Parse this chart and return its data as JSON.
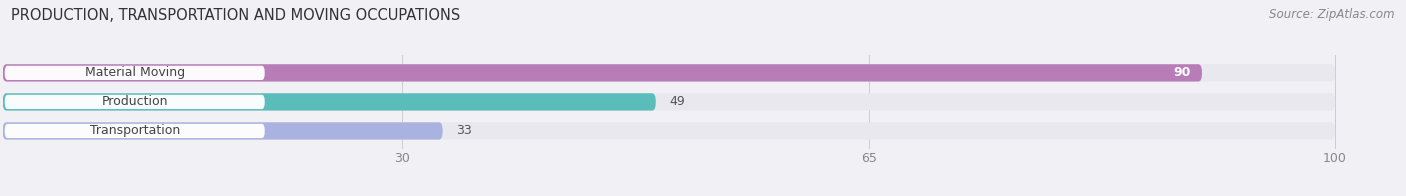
{
  "title": "PRODUCTION, TRANSPORTATION AND MOVING OCCUPATIONS",
  "source": "Source: ZipAtlas.com",
  "categories": [
    "Material Moving",
    "Production",
    "Transportation"
  ],
  "values": [
    90,
    49,
    33
  ],
  "colors": [
    "#b87db8",
    "#5bbdb9",
    "#aab2e0"
  ],
  "xlim_max": 100,
  "xticks": [
    30,
    65,
    100
  ],
  "bar_height": 0.58,
  "track_color": "#e8e8ee",
  "figsize": [
    14.06,
    1.96
  ],
  "dpi": 100,
  "title_fontsize": 10.5,
  "label_fontsize": 9,
  "value_fontsize": 9,
  "tick_fontsize": 9,
  "bg_color": "#f0f0f5"
}
